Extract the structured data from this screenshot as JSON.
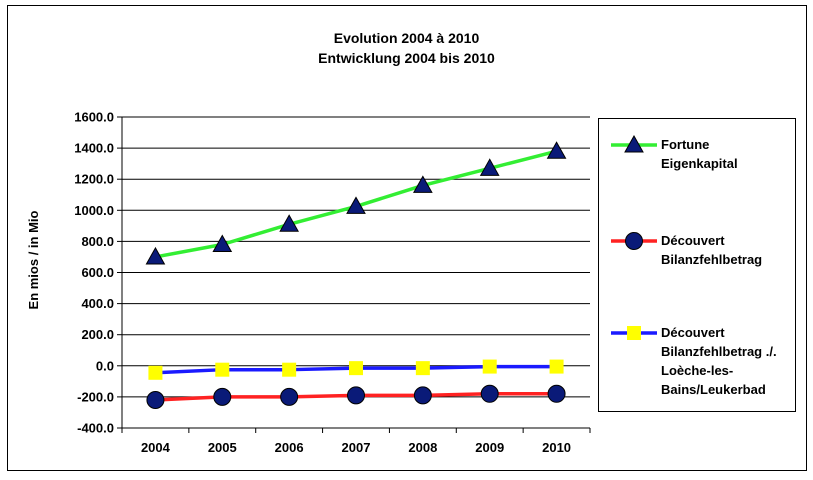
{
  "chart_data": {
    "type": "line",
    "title": "Evolution 2004 à 2010",
    "subtitle": "Entwicklung 2004 bis 2010",
    "xlabel": "",
    "ylabel": "En mios / in Mio",
    "categories": [
      "2004",
      "2005",
      "2006",
      "2007",
      "2008",
      "2009",
      "2010"
    ],
    "ylim": [
      -400,
      1600
    ],
    "ytick_step": 200,
    "ytick_labels": [
      "1600.0",
      "1400.0",
      "1200.0",
      "1000.0",
      "800.0",
      "600.0",
      "400.0",
      "200.0",
      "0.0",
      "-200.0",
      "-400.0"
    ],
    "grid": true,
    "legend_position": "right",
    "series": [
      {
        "name": "Fortune\nEigenkapital",
        "values": [
          700,
          780,
          910,
          1025,
          1160,
          1270,
          1380
        ],
        "line_color": "#33ee33",
        "marker": "triangle",
        "marker_color": "#0a1a78"
      },
      {
        "name": "Découvert\nBilanzfehlbetrag",
        "values": [
          -220,
          -200,
          -200,
          -190,
          -190,
          -180,
          -180
        ],
        "line_color": "#ff2222",
        "marker": "circle",
        "marker_color": "#0a1a78"
      },
      {
        "name": "Découvert\nBilanzfehlbetrag ./.\nLoèche-les-\nBains/Leukerbad",
        "values": [
          -45,
          -25,
          -25,
          -15,
          -15,
          -5,
          -5
        ],
        "line_color": "#1a1aff",
        "marker": "square",
        "marker_color": "#ffff00"
      }
    ]
  }
}
